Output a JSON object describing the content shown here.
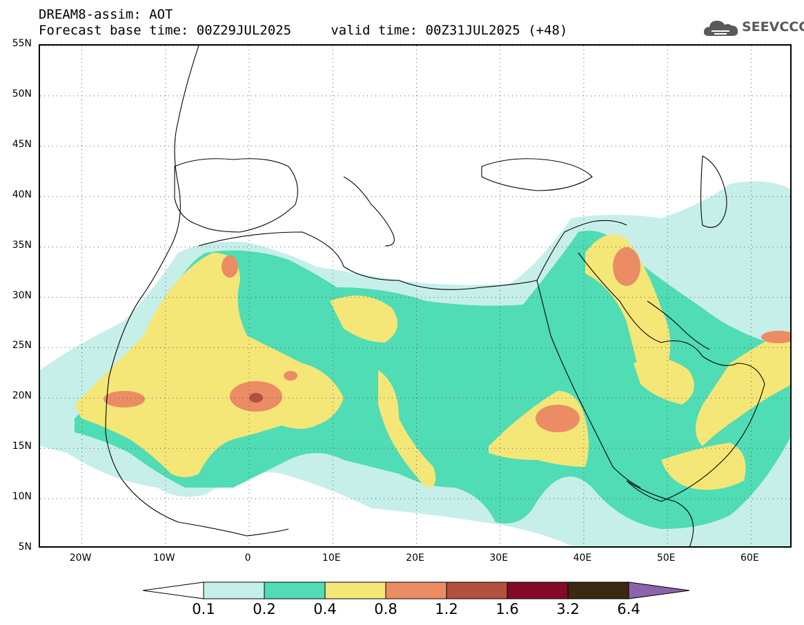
{
  "header": {
    "line1": "DREAM8-assim: AOT",
    "line2": "Forecast base time: 00Z29JUL2025     valid time: 00Z31JUL2025 (+48)"
  },
  "logo": {
    "text": "SEEVCCC",
    "icon": "cloud-icon"
  },
  "map": {
    "variable": "AOT",
    "region": "North Africa / Middle East",
    "lon_range": [
      -25,
      65
    ],
    "lat_range": [
      5,
      55
    ],
    "lat_labels": [
      "55N",
      "50N",
      "45N",
      "40N",
      "35N",
      "30N",
      "25N",
      "20N",
      "15N",
      "10N",
      "5N"
    ],
    "lat_values": [
      55,
      50,
      45,
      40,
      35,
      30,
      25,
      20,
      15,
      10,
      5
    ],
    "lon_labels": [
      "20W",
      "10W",
      "0",
      "10E",
      "20E",
      "30E",
      "40E",
      "50E",
      "60E"
    ],
    "lon_values": [
      -20,
      -10,
      0,
      10,
      20,
      30,
      40,
      50,
      60
    ],
    "grid": "dotted",
    "peak_areas": [
      {
        "lon": 0.5,
        "lat": 20,
        "level": "1.6"
      },
      {
        "lon": 45,
        "lat": 32,
        "level": "1.2"
      },
      {
        "lon": 37,
        "lat": 17,
        "level": "1.2"
      },
      {
        "lon": -14,
        "lat": 20,
        "level": "1.2"
      },
      {
        "lon": -3,
        "lat": 33,
        "level": "1.2"
      },
      {
        "lon": 62,
        "lat": 25,
        "level": "1.2"
      }
    ]
  },
  "colorbar": {
    "labels": [
      "0.1",
      "0.2",
      "0.4",
      "0.8",
      "1.2",
      "1.6",
      "3.2",
      "6.4"
    ],
    "colors": [
      "#c6efea",
      "#50dcb4",
      "#f5e678",
      "#eb8c64",
      "#b4503c",
      "#820a28",
      "#3c2814",
      "#8c64aa"
    ],
    "below_color": "#ffffff",
    "above_color": "#8c64aa"
  }
}
